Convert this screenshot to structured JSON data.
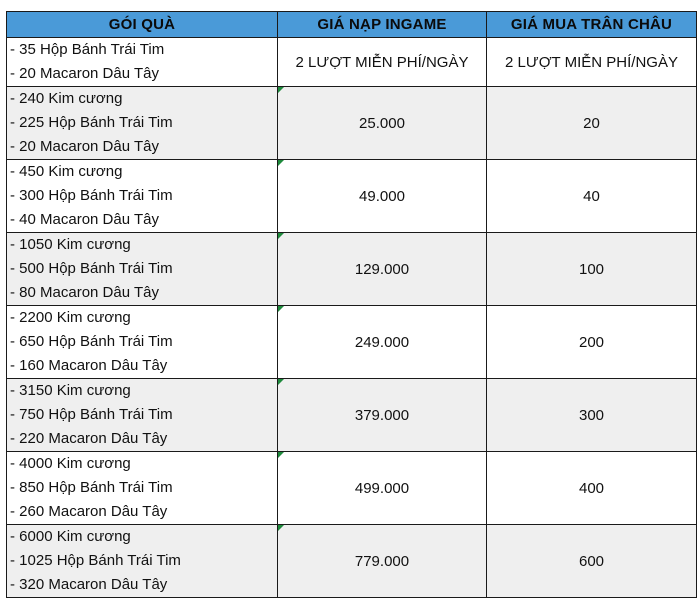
{
  "table": {
    "headers": [
      "GÓI QUÀ",
      "GIÁ NẠP INGAME",
      "GIÁ MUA TRÂN CHÂU"
    ],
    "rows": [
      {
        "items": [
          "- 35 Hộp Bánh Trái Tim",
          "- 20 Macaron Dâu Tây"
        ],
        "ingame_price": "2 LƯỢT MIỄN PHÍ/NGÀY",
        "pearl_price": "2 LƯỢT MIỄN PHÍ/NGÀY"
      },
      {
        "items": [
          "- 240 Kim cương",
          "- 225 Hộp Bánh Trái Tim",
          "- 20 Macaron Dâu Tây"
        ],
        "ingame_price": "25.000",
        "pearl_price": "20"
      },
      {
        "items": [
          "- 450 Kim cương",
          "- 300 Hộp Bánh Trái Tim",
          "- 40 Macaron Dâu Tây"
        ],
        "ingame_price": "49.000",
        "pearl_price": "40"
      },
      {
        "items": [
          "- 1050 Kim cương",
          "- 500 Hộp Bánh Trái Tim",
          "- 80 Macaron Dâu Tây"
        ],
        "ingame_price": "129.000",
        "pearl_price": "100"
      },
      {
        "items": [
          "- 2200 Kim cương",
          "- 650 Hộp Bánh Trái Tim",
          "- 160 Macaron Dâu Tây"
        ],
        "ingame_price": "249.000",
        "pearl_price": "200"
      },
      {
        "items": [
          "- 3150 Kim cương",
          "- 750 Hộp Bánh Trái Tim",
          "- 220 Macaron Dâu Tây"
        ],
        "ingame_price": "379.000",
        "pearl_price": "300"
      },
      {
        "items": [
          "- 4000 Kim cương",
          "- 850 Hộp Bánh Trái Tim",
          "- 260 Macaron Dâu Tây"
        ],
        "ingame_price": "499.000",
        "pearl_price": "400"
      },
      {
        "items": [
          "- 6000 Kim cương",
          "- 1025 Hộp Bánh Trái Tim",
          "- 320 Macaron Dâu Tây"
        ],
        "ingame_price": "779.000",
        "pearl_price": "600"
      }
    ]
  },
  "colors": {
    "header_bg": "#4a9ad8",
    "alt_row_bg": "#efefef",
    "comment_marker": "#1e8a3c"
  }
}
